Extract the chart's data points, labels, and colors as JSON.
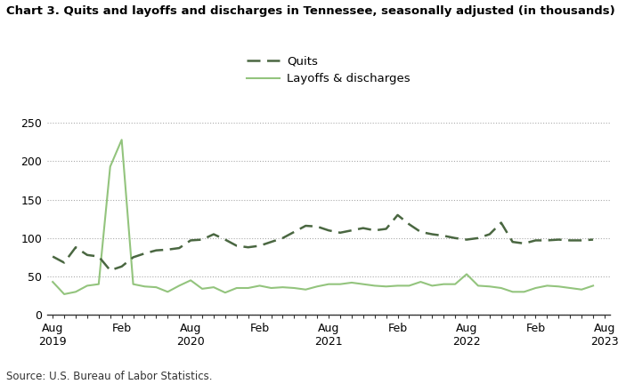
{
  "title": "Chart 3. Quits and layoffs and discharges in Tennessee, seasonally adjusted (in thousands)",
  "source": "Source: U.S. Bureau of Labor Statistics.",
  "quits_label": "Quits",
  "layoffs_label": "Layoffs & discharges",
  "quits_color": "#4a6741",
  "layoffs_color": "#93c47d",
  "background_color": "#ffffff",
  "ylim": [
    0,
    250
  ],
  "yticks": [
    0,
    50,
    100,
    150,
    200,
    250
  ],
  "quits": [
    76,
    68,
    88,
    78,
    76,
    58,
    63,
    75,
    80,
    84,
    85,
    87,
    97,
    98,
    105,
    98,
    90,
    88,
    90,
    95,
    100,
    108,
    116,
    115,
    110,
    107,
    110,
    113,
    110,
    112,
    130,
    118,
    108,
    105,
    103,
    100,
    98,
    100,
    105,
    120,
    95,
    93,
    97,
    97,
    98,
    97,
    97,
    98
  ],
  "layoffs": [
    43,
    27,
    30,
    38,
    40,
    193,
    228,
    40,
    37,
    36,
    30,
    38,
    45,
    34,
    36,
    29,
    35,
    35,
    38,
    35,
    36,
    35,
    33,
    37,
    40,
    40,
    42,
    40,
    38,
    37,
    38,
    38,
    43,
    38,
    40,
    40,
    53,
    38,
    37,
    35,
    30,
    30,
    35,
    38,
    37,
    35,
    33,
    38
  ],
  "n_points": 48,
  "xtick_aug_positions": [
    0,
    12,
    24,
    36,
    48
  ],
  "xtick_feb_positions": [
    6,
    18,
    30,
    42
  ],
  "xtick_aug_labels": [
    "Aug\n2019",
    "Aug\n2020",
    "Aug\n2021",
    "Aug\n2022",
    "Aug\n2023"
  ],
  "xtick_feb_labels": [
    "Feb",
    "Feb",
    "Feb",
    "Feb"
  ]
}
